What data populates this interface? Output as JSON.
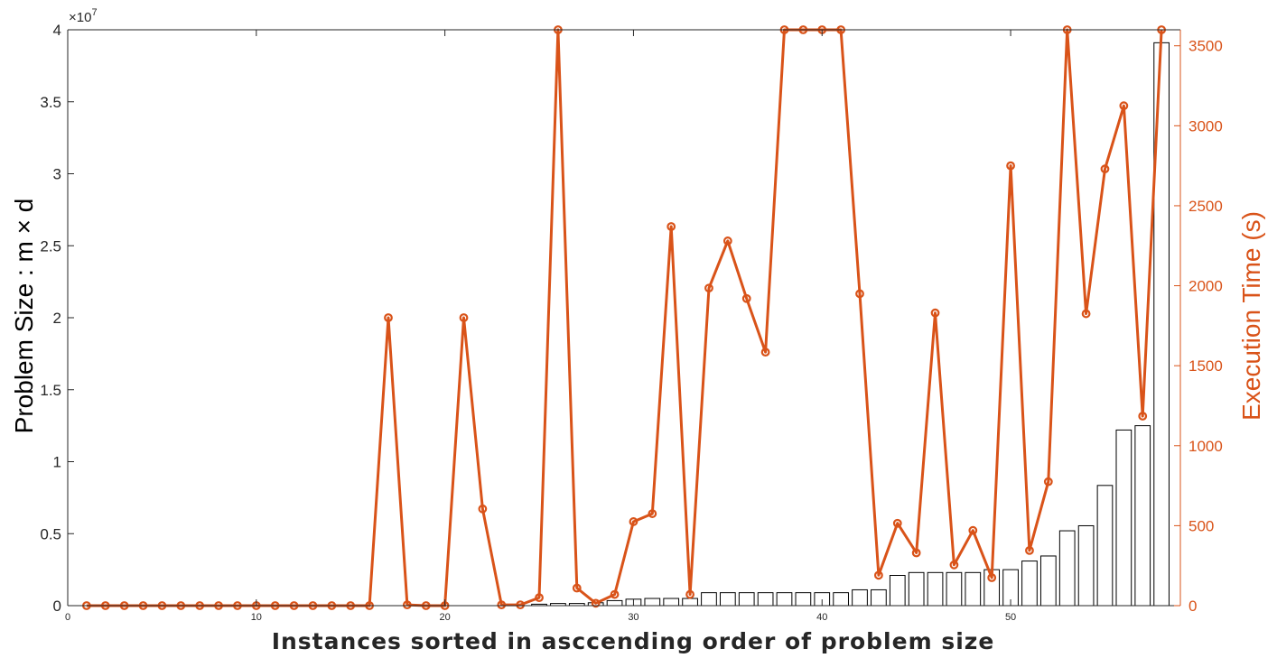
{
  "chart_data": {
    "type": "bar+line",
    "title": "",
    "xlabel": "Instances sorted in asccending order of problem size",
    "ylabel_left": "Problem Size : m × d",
    "ylabel_right": "Execution Time (s)",
    "left_axis_exponent": "×10",
    "left_axis_exponent_power": "7",
    "xlim": [
      0,
      59
    ],
    "ylim_left": [
      0,
      4
    ],
    "ylim_right": [
      0,
      3600
    ],
    "x_ticks": [
      {
        "value": 0,
        "label": "0"
      },
      {
        "value": 10,
        "label": "10"
      },
      {
        "value": 20,
        "label": "20"
      },
      {
        "value": 30,
        "label": "30"
      },
      {
        "value": 40,
        "label": "40"
      },
      {
        "value": 50,
        "label": "50"
      }
    ],
    "y_left_ticks": [
      {
        "value": 0,
        "label": "0"
      },
      {
        "value": 0.5,
        "label": "0.5"
      },
      {
        "value": 1,
        "label": "1"
      },
      {
        "value": 1.5,
        "label": "1.5"
      },
      {
        "value": 2,
        "label": "2"
      },
      {
        "value": 2.5,
        "label": "2.5"
      },
      {
        "value": 3,
        "label": "3"
      },
      {
        "value": 3.5,
        "label": "3.5"
      },
      {
        "value": 4,
        "label": "4"
      }
    ],
    "y_right_ticks": [
      {
        "value": 0,
        "label": "0"
      },
      {
        "value": 500,
        "label": "500"
      },
      {
        "value": 1000,
        "label": "1000"
      },
      {
        "value": 1500,
        "label": "1500"
      },
      {
        "value": 2000,
        "label": "2000"
      },
      {
        "value": 2500,
        "label": "2500"
      },
      {
        "value": 3000,
        "label": "3000"
      },
      {
        "value": 3500,
        "label": "3500"
      }
    ],
    "x": [
      1,
      2,
      3,
      4,
      5,
      6,
      7,
      8,
      9,
      10,
      11,
      12,
      13,
      14,
      15,
      16,
      17,
      18,
      19,
      20,
      21,
      22,
      23,
      24,
      25,
      26,
      27,
      28,
      29,
      30,
      31,
      32,
      33,
      34,
      35,
      36,
      37,
      38,
      39,
      40,
      41,
      42,
      43,
      44,
      45,
      46,
      47,
      48,
      49,
      50,
      51,
      52,
      53,
      54,
      55,
      56,
      57,
      58
    ],
    "series": [
      {
        "type": "bar",
        "axis": "left",
        "values": [
          0,
          0,
          0,
          0,
          0,
          0,
          0,
          0,
          0,
          0,
          0,
          0,
          0,
          0,
          0,
          0,
          0,
          0,
          0,
          0,
          0,
          0,
          0,
          0,
          0.01,
          0.015,
          0.015,
          0.02,
          0.035,
          0.045,
          0.05,
          0.05,
          0.05,
          0.09,
          0.09,
          0.09,
          0.09,
          0.09,
          0.09,
          0.09,
          0.09,
          0.11,
          0.11,
          0.21,
          0.23,
          0.23,
          0.23,
          0.23,
          0.25,
          0.25,
          0.31,
          0.345,
          0.52,
          0.555,
          0.835,
          1.22,
          1.25,
          3.91
        ]
      },
      {
        "type": "line",
        "axis": "right",
        "values": [
          0,
          0,
          0,
          0,
          0,
          0,
          0,
          0,
          0,
          0,
          0,
          0,
          0,
          0,
          0,
          0,
          1800,
          5,
          0,
          0,
          1800,
          605,
          5,
          5,
          50,
          3600,
          110,
          15,
          70,
          525,
          575,
          2370,
          70,
          1985,
          2280,
          1920,
          1585,
          3600,
          3600,
          3600,
          3600,
          1950,
          190,
          515,
          330,
          1830,
          255,
          470,
          175,
          2750,
          345,
          775,
          3600,
          1825,
          2730,
          3125,
          1185,
          3600
        ]
      }
    ],
    "colors": {
      "line": "#d95319",
      "bar_edge": "#000000",
      "bar_fill": "#ffffff",
      "left_axis": "#262626",
      "right_axis": "#d95319"
    },
    "grid": false
  }
}
